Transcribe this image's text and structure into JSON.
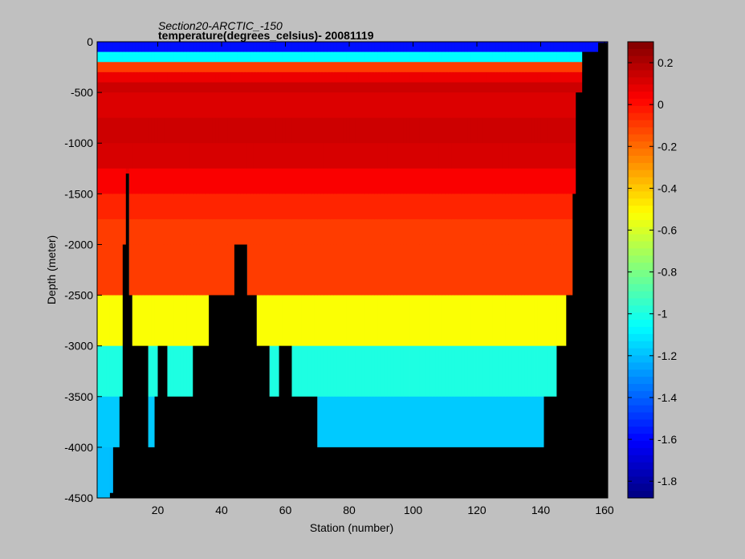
{
  "chart_data": {
    "type": "heatmap",
    "title": "Section20-ARCTIC_-150",
    "subtitle": "temperature(degrees_celsius)- 20081119",
    "xlabel": "Station (number)",
    "ylabel": "Depth (meter)",
    "xlim": [
      1,
      161
    ],
    "ylim": [
      -4500,
      0
    ],
    "x_ticks": [
      20,
      40,
      60,
      80,
      100,
      120,
      140,
      160
    ],
    "y_ticks": [
      0,
      -500,
      -1000,
      -1500,
      -2000,
      -2500,
      -3000,
      -3500,
      -4000,
      -4500
    ],
    "colorbar": {
      "colormap": "jet",
      "range": [
        -1.88,
        0.3
      ],
      "ticks": [
        0.2,
        0,
        -0.2,
        -0.4,
        -0.6,
        -0.8,
        -1,
        -1.2,
        -1.4,
        -1.6,
        -1.8
      ]
    },
    "grid": false,
    "depth_levels": [
      0,
      -100,
      -200,
      -300,
      -400,
      -500,
      -750,
      -1000,
      -1250,
      -1500,
      -1750,
      -2000,
      -2500,
      -3000,
      -3500,
      -4000,
      -4500
    ],
    "seafloor_depth_by_station": [
      {
        "station": 1,
        "depth": -4500
      },
      {
        "station": 5,
        "depth": -4450
      },
      {
        "station": 6,
        "depth": -4000
      },
      {
        "station": 8,
        "depth": -3500
      },
      {
        "station": 9,
        "depth": -2000
      },
      {
        "station": 10,
        "depth": -1300
      },
      {
        "station": 11,
        "depth": -2500
      },
      {
        "station": 12,
        "depth": -3000
      },
      {
        "station": 17,
        "depth": -4000
      },
      {
        "station": 19,
        "depth": -3500
      },
      {
        "station": 20,
        "depth": -3000
      },
      {
        "station": 23,
        "depth": -3500
      },
      {
        "station": 31,
        "depth": -3000
      },
      {
        "station": 36,
        "depth": -2500
      },
      {
        "station": 44,
        "depth": -2000
      },
      {
        "station": 48,
        "depth": -2500
      },
      {
        "station": 51,
        "depth": -3000
      },
      {
        "station": 55,
        "depth": -3500
      },
      {
        "station": 58,
        "depth": -3000
      },
      {
        "station": 62,
        "depth": -3500
      },
      {
        "station": 70,
        "depth": -4000
      },
      {
        "station": 141,
        "depth": -3500
      },
      {
        "station": 145,
        "depth": -3000
      },
      {
        "station": 148,
        "depth": -2500
      },
      {
        "station": 150,
        "depth": -1500
      },
      {
        "station": 151,
        "depth": -500
      },
      {
        "station": 153,
        "depth": -100
      },
      {
        "station": 158,
        "depth": -10
      },
      {
        "station": 161,
        "depth": 0
      }
    ],
    "temperature_profile_by_depth": [
      {
        "depth": 0,
        "temperature": -1.65
      },
      {
        "depth": -100,
        "temperature": -1.5
      },
      {
        "depth": -170,
        "temperature": -0.9
      },
      {
        "depth": -250,
        "temperature": -0.1
      },
      {
        "depth": -400,
        "temperature": 0.15
      },
      {
        "depth": -600,
        "temperature": 0.1
      },
      {
        "depth": -1000,
        "temperature": 0.15
      },
      {
        "depth": -1500,
        "temperature": 0.0
      },
      {
        "depth": -1750,
        "temperature": -0.1
      },
      {
        "depth": -2000,
        "temperature": -0.1
      },
      {
        "depth": -2500,
        "temperature": -0.1
      },
      {
        "depth": -3000,
        "temperature": -0.95
      },
      {
        "depth": -3500,
        "temperature": -1.05
      },
      {
        "depth": -4000,
        "temperature": -1.3
      },
      {
        "depth": -4500,
        "temperature": -1.1
      }
    ]
  }
}
